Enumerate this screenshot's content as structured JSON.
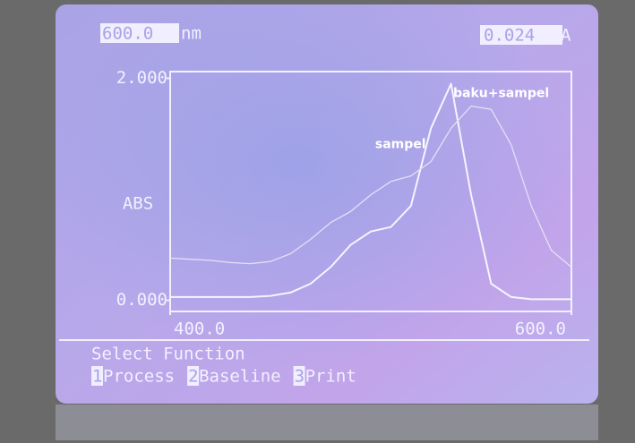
{
  "screen": {
    "wavelength": "600.0",
    "wavelength_unit": "nm",
    "absorbance": "0.024",
    "absorbance_unit": "A"
  },
  "chart_data": {
    "type": "line",
    "ylabel": "ABS",
    "x": [
      400,
      410,
      420,
      430,
      440,
      450,
      460,
      470,
      480,
      490,
      500,
      510,
      520,
      530,
      540,
      550,
      560,
      570,
      580,
      590,
      600
    ],
    "series": [
      {
        "name": "sampel",
        "color": "#f6f4ff",
        "values": [
          0.03,
          0.03,
          0.03,
          0.03,
          0.03,
          0.04,
          0.07,
          0.15,
          0.3,
          0.5,
          0.62,
          0.66,
          0.85,
          1.55,
          1.95,
          0.95,
          0.15,
          0.03,
          0.01,
          0.01,
          0.01
        ]
      },
      {
        "name": "baku+sampel",
        "color": "#e4e0f4",
        "values": [
          0.38,
          0.37,
          0.36,
          0.34,
          0.33,
          0.35,
          0.42,
          0.55,
          0.7,
          0.8,
          0.95,
          1.07,
          1.12,
          1.25,
          1.55,
          1.75,
          1.72,
          1.4,
          0.85,
          0.45,
          0.3
        ]
      }
    ],
    "xlim": [
      400,
      600
    ],
    "ylim": [
      -0.1,
      2.06
    ],
    "xticks": [
      {
        "value": 400,
        "label": "400.0"
      },
      {
        "value": 600,
        "label": "600.0"
      }
    ],
    "yticks": [
      {
        "value": 0,
        "label": "0.000"
      },
      {
        "value": 2,
        "label": "2.000"
      }
    ],
    "grid": false
  },
  "menu": {
    "prompt": "Select Function",
    "options": [
      {
        "key": "1",
        "label": "Process"
      },
      {
        "key": "2",
        "label": "Baseline"
      },
      {
        "key": "3",
        "label": "Print"
      }
    ]
  }
}
